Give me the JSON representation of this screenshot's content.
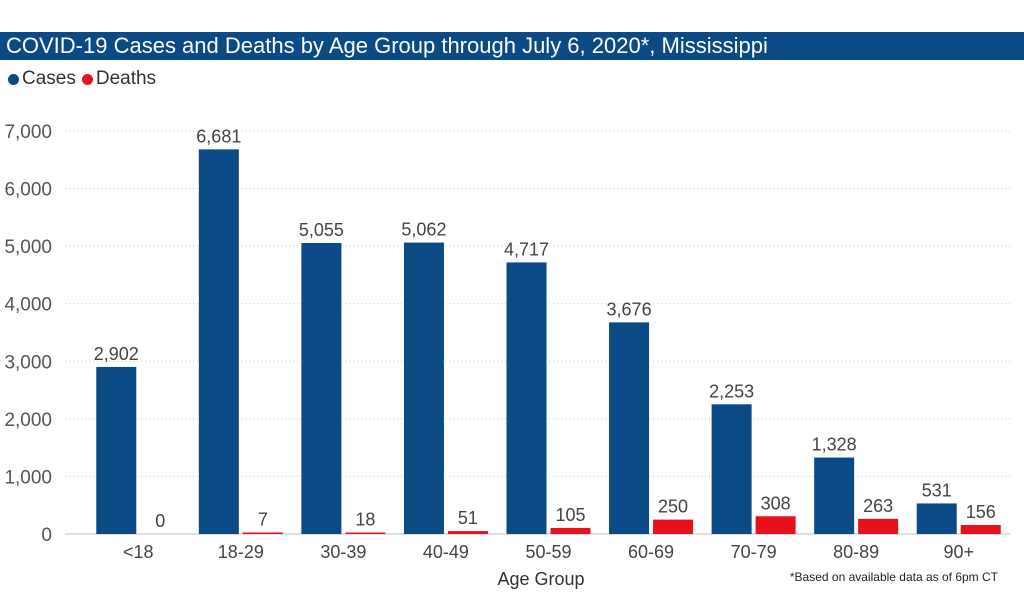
{
  "title": "COVID-19 Cases and Deaths by Age Group through July 6, 2020*, Mississippi",
  "footnote": "*Based on available data as of 6pm CT",
  "colors": {
    "title_bg": "#0a4a85",
    "cases": "#0a4a85",
    "deaths": "#e8101a"
  },
  "chart_data": {
    "type": "bar",
    "title": "COVID-19 Cases and Deaths by Age Group through July 6, 2020*, Mississippi",
    "xlabel": "Age Group",
    "ylabel": "",
    "ylim": [
      0,
      7000
    ],
    "yticks": [
      "0",
      "1,000",
      "2,000",
      "3,000",
      "4,000",
      "5,000",
      "6,000",
      "7,000"
    ],
    "ytick_values": [
      0,
      1000,
      2000,
      3000,
      4000,
      5000,
      6000,
      7000
    ],
    "grid": true,
    "legend_position": "top-left",
    "categories": [
      "<18",
      "18-29",
      "30-39",
      "40-49",
      "50-59",
      "60-69",
      "70-79",
      "80-89",
      "90+"
    ],
    "series": [
      {
        "name": "Cases",
        "color": "#0a4a85",
        "values": [
          2902,
          6681,
          5055,
          5062,
          4717,
          3676,
          2253,
          1328,
          531
        ],
        "labels": [
          "2,902",
          "6,681",
          "5,055",
          "5,062",
          "4,717",
          "3,676",
          "2,253",
          "1,328",
          "531"
        ]
      },
      {
        "name": "Deaths",
        "color": "#e8101a",
        "values": [
          0,
          7,
          18,
          51,
          105,
          250,
          308,
          263,
          156
        ],
        "labels": [
          "0",
          "7",
          "18",
          "51",
          "105",
          "250",
          "308",
          "263",
          "156"
        ]
      }
    ]
  }
}
